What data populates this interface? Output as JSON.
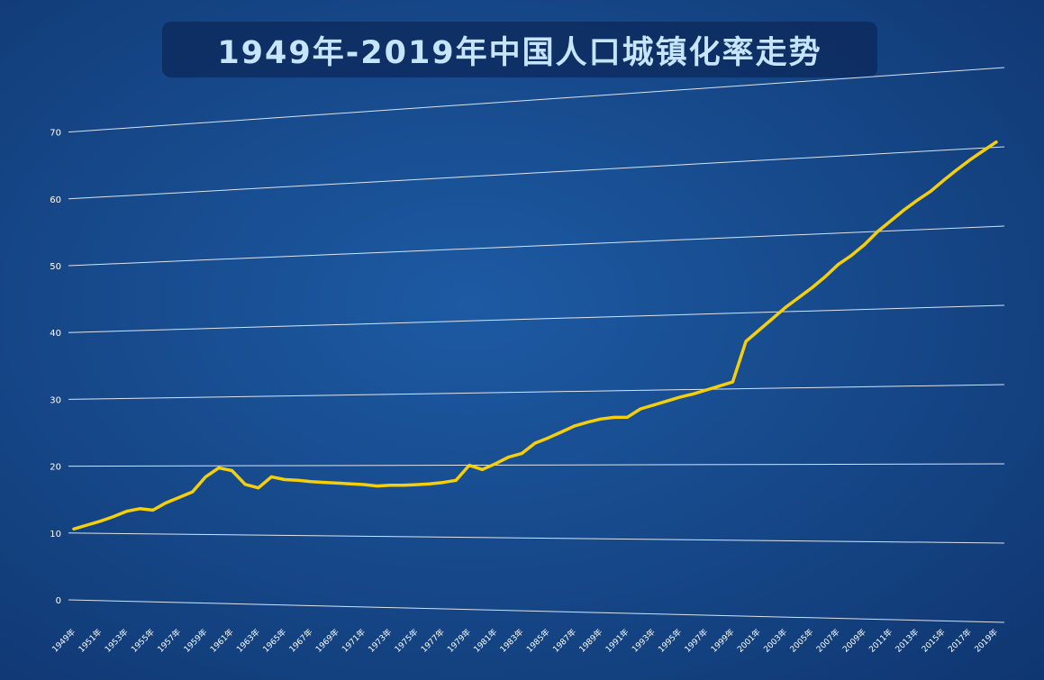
{
  "header": {
    "title": "1949年-2019年中国人口城镇化率走势"
  },
  "colors": {
    "line": "#f5cf0a",
    "grid": "#ffffff",
    "title_text": "#c6e4fb"
  },
  "chart_data": {
    "type": "line",
    "title": "1949年-2019年中国人口城镇化率走势",
    "xlabel": "",
    "ylabel": "",
    "ylim": [
      0,
      70
    ],
    "yticks": [
      0,
      10,
      20,
      30,
      40,
      50,
      60,
      70
    ],
    "grid": true,
    "legend": "none",
    "x": [
      "1949年",
      "1950年",
      "1951年",
      "1952年",
      "1953年",
      "1954年",
      "1955年",
      "1956年",
      "1957年",
      "1958年",
      "1959年",
      "1960年",
      "1961年",
      "1962年",
      "1963年",
      "1964年",
      "1965年",
      "1966年",
      "1967年",
      "1968年",
      "1969年",
      "1970年",
      "1971年",
      "1972年",
      "1973年",
      "1974年",
      "1975年",
      "1976年",
      "1977年",
      "1978年",
      "1979年",
      "1980年",
      "1981年",
      "1982年",
      "1983年",
      "1984年",
      "1985年",
      "1986年",
      "1987年",
      "1988年",
      "1989年",
      "1990年",
      "1991年",
      "1992年",
      "1993年",
      "1994年",
      "1995年",
      "1996年",
      "1997年",
      "1998年",
      "1999年",
      "2000年",
      "2001年",
      "2002年",
      "2003年",
      "2004年",
      "2005年",
      "2006年",
      "2007年",
      "2008年",
      "2009年",
      "2010年",
      "2011年",
      "2012年",
      "2013年",
      "2014年",
      "2015年",
      "2016年",
      "2017年",
      "2018年",
      "2019年"
    ],
    "xtick_labels": [
      "1949年",
      "1951年",
      "1953年",
      "1955年",
      "1957年",
      "1959年",
      "1961年",
      "1963年",
      "1965年",
      "1967年",
      "1969年",
      "1971年",
      "1973年",
      "1975年",
      "1977年",
      "1979年",
      "1981年",
      "1983年",
      "1985年",
      "1987年",
      "1989年",
      "1991年",
      "1993年",
      "1995年",
      "1997年",
      "1999年",
      "2001年",
      "2003年",
      "2005年",
      "2007年",
      "2009年",
      "2011年",
      "2013年",
      "2015年",
      "2017年",
      "2019年"
    ],
    "series": [
      {
        "values": [
          10.6,
          11.2,
          11.8,
          12.5,
          13.3,
          13.7,
          13.5,
          14.6,
          15.4,
          16.2,
          18.4,
          19.7,
          19.3,
          17.3,
          16.8,
          18.4,
          18.0,
          17.9,
          17.7,
          17.6,
          17.5,
          17.4,
          17.3,
          17.1,
          17.2,
          17.2,
          17.3,
          17.4,
          17.6,
          17.9,
          19.99,
          19.4,
          20.2,
          21.1,
          21.6,
          23.0,
          23.7,
          24.5,
          25.3,
          25.8,
          26.2,
          26.4,
          26.4,
          27.5,
          28.0,
          28.5,
          29.0,
          29.4,
          29.9,
          30.4,
          30.9,
          36.22,
          37.66,
          39.09,
          40.53,
          41.76,
          42.99,
          44.34,
          45.89,
          46.99,
          48.34,
          49.95,
          51.27,
          52.57,
          53.73,
          54.77,
          56.1,
          57.35,
          58.52,
          59.58,
          60.6
        ]
      }
    ]
  }
}
